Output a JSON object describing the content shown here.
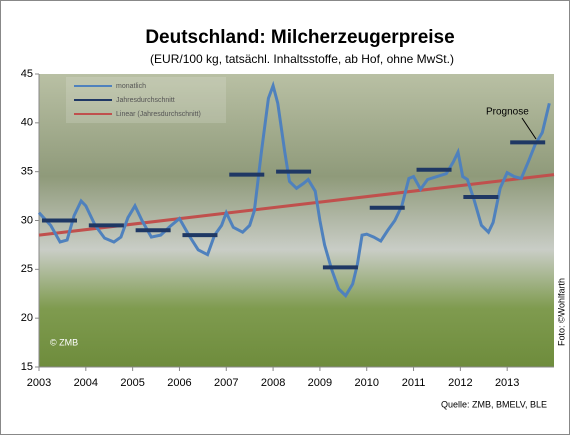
{
  "chart_data": {
    "type": "line",
    "title": "Deutschland: Milcherzeugerpreise",
    "subtitle": "(EUR/100 kg, tatsächl. Inhaltsstoffe, ab Hof, ohne MwSt.)",
    "xlim": [
      2003,
      2014
    ],
    "xticks": [
      2003,
      2004,
      2005,
      2006,
      2007,
      2008,
      2009,
      2010,
      2011,
      2012,
      2013
    ],
    "ylim": [
      15,
      45
    ],
    "yticks": [
      15,
      20,
      25,
      30,
      35,
      40,
      45
    ],
    "series": [
      {
        "name": "monatlich",
        "color": "#4f81bd",
        "type": "line",
        "x": [
          2003.0,
          2003.25,
          2003.45,
          2003.6,
          2003.75,
          2003.9,
          2004.0,
          2004.2,
          2004.4,
          2004.6,
          2004.75,
          2004.9,
          2005.05,
          2005.2,
          2005.4,
          2005.6,
          2005.8,
          2006.0,
          2006.2,
          2006.4,
          2006.6,
          2006.75,
          2006.9,
          2007.0,
          2007.15,
          2007.35,
          2007.5,
          2007.6,
          2007.75,
          2007.9,
          2008.0,
          2008.1,
          2008.25,
          2008.35,
          2008.5,
          2008.65,
          2008.75,
          2008.9,
          2009.0,
          2009.1,
          2009.25,
          2009.4,
          2009.55,
          2009.7,
          2009.8,
          2009.9,
          2010.0,
          2010.15,
          2010.3,
          2010.45,
          2010.6,
          2010.75,
          2010.9,
          2011.0,
          2011.15,
          2011.3,
          2011.5,
          2011.7,
          2011.85,
          2011.95,
          2012.05,
          2012.15,
          2012.3,
          2012.45,
          2012.6,
          2012.7,
          2012.85,
          2013.0,
          2013.15,
          2013.3,
          2013.45,
          2013.6,
          2013.75,
          2013.9
        ],
        "values": [
          30.8,
          29.5,
          27.8,
          28.0,
          30.5,
          32.0,
          31.5,
          29.5,
          28.2,
          27.8,
          28.3,
          30.3,
          31.5,
          30.0,
          28.3,
          28.5,
          29.4,
          30.2,
          28.5,
          27.0,
          26.5,
          28.5,
          29.5,
          30.8,
          29.3,
          28.8,
          29.5,
          31.0,
          37.0,
          42.5,
          43.8,
          42.0,
          37.0,
          34.0,
          33.3,
          33.8,
          34.2,
          33.0,
          30.0,
          27.5,
          25.0,
          23.0,
          22.3,
          23.5,
          25.5,
          28.5,
          28.6,
          28.3,
          27.9,
          29.0,
          30.0,
          31.5,
          34.3,
          34.5,
          33.2,
          34.2,
          34.5,
          34.8,
          36.0,
          37.0,
          34.5,
          34.2,
          32.0,
          29.5,
          28.8,
          29.8,
          33.3,
          34.9,
          34.5,
          34.3,
          36.0,
          37.8,
          39.0,
          42.0
        ]
      },
      {
        "name": "Jahresdurchschnitt",
        "color": "#1f3864",
        "type": "dash",
        "x": [
          2003,
          2004,
          2005,
          2006,
          2007,
          2008,
          2009,
          2010,
          2011,
          2012,
          2013
        ],
        "values": [
          30.0,
          29.5,
          29.0,
          28.5,
          34.7,
          35.0,
          25.2,
          31.3,
          35.2,
          32.4,
          38.0
        ]
      },
      {
        "name": "Linear (Jahresdurchschnitt)",
        "color": "#c0504d",
        "type": "line",
        "x": [
          2003,
          2014
        ],
        "values": [
          28.5,
          34.7
        ]
      }
    ],
    "annotations": [
      "© ZMB",
      "Prognose",
      "Foto: ©Wohlfarth",
      "Quelle: ZMB, BMELV, BLE"
    ]
  }
}
